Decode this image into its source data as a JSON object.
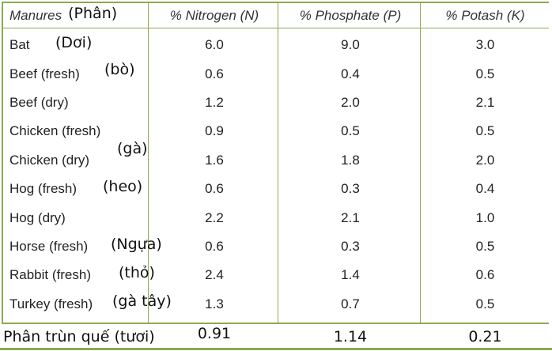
{
  "header": {
    "col_manures": "Manures",
    "col_manures_vi": "(Phân)",
    "col_nitrogen": "% Nitrogen (N)",
    "col_phosphate": "% Phosphate (P)",
    "col_potash": "% Potash (K)"
  },
  "rows": [
    {
      "name": "Bat",
      "vi": "(Dơi)",
      "n": "6.0",
      "p": "9.0",
      "k": "3.0"
    },
    {
      "name": "Beef (fresh)",
      "vi": "(bò)",
      "n": "0.6",
      "p": "0.4",
      "k": "0.5"
    },
    {
      "name": "Beef (dry)",
      "vi": "",
      "n": "1.2",
      "p": "2.0",
      "k": "2.1"
    },
    {
      "name": "Chicken (fresh)",
      "vi": "",
      "n": "0.9",
      "p": "0.5",
      "k": "0.5"
    },
    {
      "name": "Chicken (dry)",
      "vi": "(gà)",
      "n": "1.6",
      "p": "1.8",
      "k": "2.0"
    },
    {
      "name": "Hog (fresh)",
      "vi": "(heo)",
      "n": "0.6",
      "p": "0.3",
      "k": "0.4"
    },
    {
      "name": "Hog (dry)",
      "vi": "",
      "n": "2.2",
      "p": "2.1",
      "k": "1.0"
    },
    {
      "name": "Horse (fresh)",
      "vi": "(Ngựa)",
      "n": "0.6",
      "p": "0.3",
      "k": "0.5"
    },
    {
      "name": "Rabbit (fresh)",
      "vi": "(thỏ)",
      "n": "2.4",
      "p": "1.4",
      "k": "0.6"
    },
    {
      "name": "Turkey (fresh)",
      "vi": "(gà tây)",
      "n": "1.3",
      "p": "0.7",
      "k": "0.5"
    }
  ],
  "footer": {
    "name": "Phân trùn quế (tươi)",
    "n": "0.91",
    "p": "1.14",
    "k": "0.21"
  },
  "colors": {
    "rule": "#8aab4f"
  }
}
